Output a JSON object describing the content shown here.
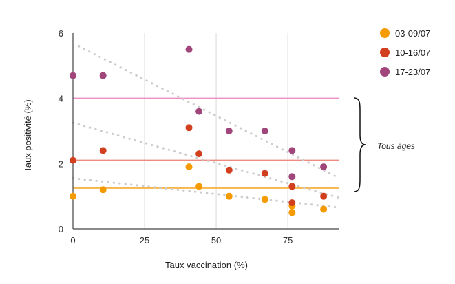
{
  "chart_data": {
    "type": "scatter",
    "xlabel": "Taux vaccination (%)",
    "ylabel": "Taux positivité (%)",
    "xlim": [
      0,
      93
    ],
    "ylim": [
      0,
      6
    ],
    "x_ticks": [
      0,
      25,
      50,
      75
    ],
    "y_ticks": [
      0,
      2,
      4,
      6
    ],
    "grid": "vertical",
    "legend_position": "top-right",
    "series": [
      {
        "name": "03-09/07",
        "color": "#f59a00",
        "points": [
          [
            0,
            1.0
          ],
          [
            10.5,
            1.2
          ],
          [
            40.5,
            1.9
          ],
          [
            44,
            1.3
          ],
          [
            54.5,
            1.0
          ],
          [
            67,
            0.9
          ],
          [
            76.5,
            0.5
          ],
          [
            76.5,
            0.7
          ],
          [
            87.5,
            0.6
          ]
        ],
        "trend": [
          [
            0,
            1.55
          ],
          [
            93,
            0.65
          ]
        ],
        "average": 1.25
      },
      {
        "name": "10-16/07",
        "color": "#d23f1e",
        "points": [
          [
            0,
            2.1
          ],
          [
            10.5,
            2.4
          ],
          [
            40.5,
            3.1
          ],
          [
            44,
            2.3
          ],
          [
            54.5,
            1.8
          ],
          [
            67,
            1.7
          ],
          [
            76.5,
            1.3
          ],
          [
            76.5,
            0.8
          ],
          [
            87.5,
            1.0
          ]
        ],
        "trend": [
          [
            0,
            3.25
          ],
          [
            93,
            0.95
          ]
        ],
        "average": 2.1
      },
      {
        "name": "17-23/07",
        "color": "#a0467a",
        "points": [
          [
            0,
            4.7
          ],
          [
            10.5,
            4.7
          ],
          [
            40.5,
            5.5
          ],
          [
            44,
            3.6
          ],
          [
            54.5,
            3.0
          ],
          [
            67,
            3.0
          ],
          [
            76.5,
            2.4
          ],
          [
            76.5,
            1.6
          ],
          [
            87.5,
            1.9
          ]
        ],
        "trend": [
          [
            2,
            5.6
          ],
          [
            93,
            1.55
          ]
        ],
        "average": 4.0
      }
    ],
    "average_line_colors": [
      "#f7b64a",
      "#ee8a7e",
      "#ef8ec4"
    ],
    "annotation": "Tous âges"
  }
}
